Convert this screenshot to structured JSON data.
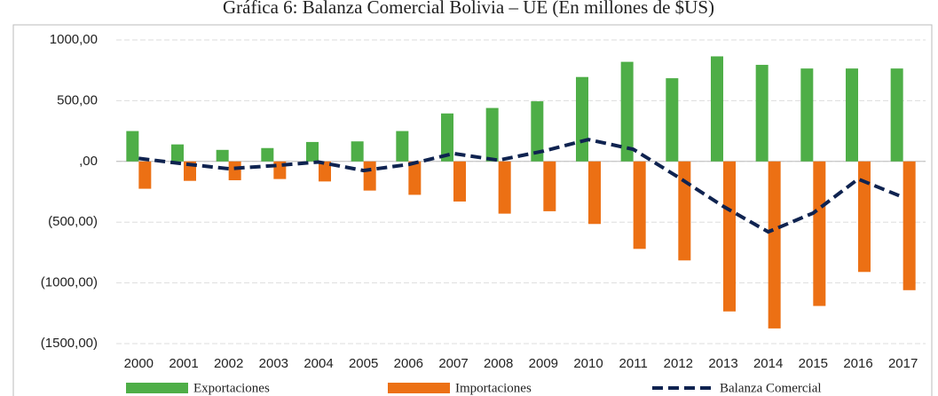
{
  "chart_data": {
    "type": "bar",
    "title": "Gráfica 6: Balanza Comercial Bolivia – UE (En millones de $US)",
    "categories": [
      "2000",
      "2001",
      "2002",
      "2003",
      "2004",
      "2005",
      "2006",
      "2007",
      "2008",
      "2009",
      "2010",
      "2011",
      "2012",
      "2013",
      "2014",
      "2015",
      "2016",
      "2017"
    ],
    "series": [
      {
        "name": "Exportaciones",
        "type": "bar",
        "color": "#4eae47",
        "values": [
          250,
          140,
          95,
          110,
          160,
          165,
          250,
          395,
          440,
          495,
          695,
          820,
          685,
          865,
          795,
          765,
          765,
          765
        ]
      },
      {
        "name": "Importaciones",
        "type": "bar",
        "color": "#ec7014",
        "values": [
          -225,
          -160,
          -155,
          -145,
          -165,
          -240,
          -275,
          -330,
          -430,
          -410,
          -515,
          -720,
          -815,
          -1235,
          -1375,
          -1190,
          -910,
          -1060
        ]
      },
      {
        "name": "Balanza Comercial",
        "type": "line",
        "color": "#0f2350",
        "values": [
          25,
          -20,
          -60,
          -35,
          -5,
          -75,
          -25,
          65,
          10,
          85,
          180,
          100,
          -130,
          -370,
          -580,
          -425,
          -145,
          -295
        ]
      }
    ],
    "ylim": [
      -1500,
      1000
    ],
    "yticks": [
      {
        "value": -1500,
        "label": "(1500,00)"
      },
      {
        "value": -1000,
        "label": "(1000,00)"
      },
      {
        "value": -500,
        "label": "(500,00)"
      },
      {
        "value": 0,
        "label": ",00"
      },
      {
        "value": 500,
        "label": "500,00"
      },
      {
        "value": 1000,
        "label": "1000,00"
      }
    ],
    "grid": true
  }
}
